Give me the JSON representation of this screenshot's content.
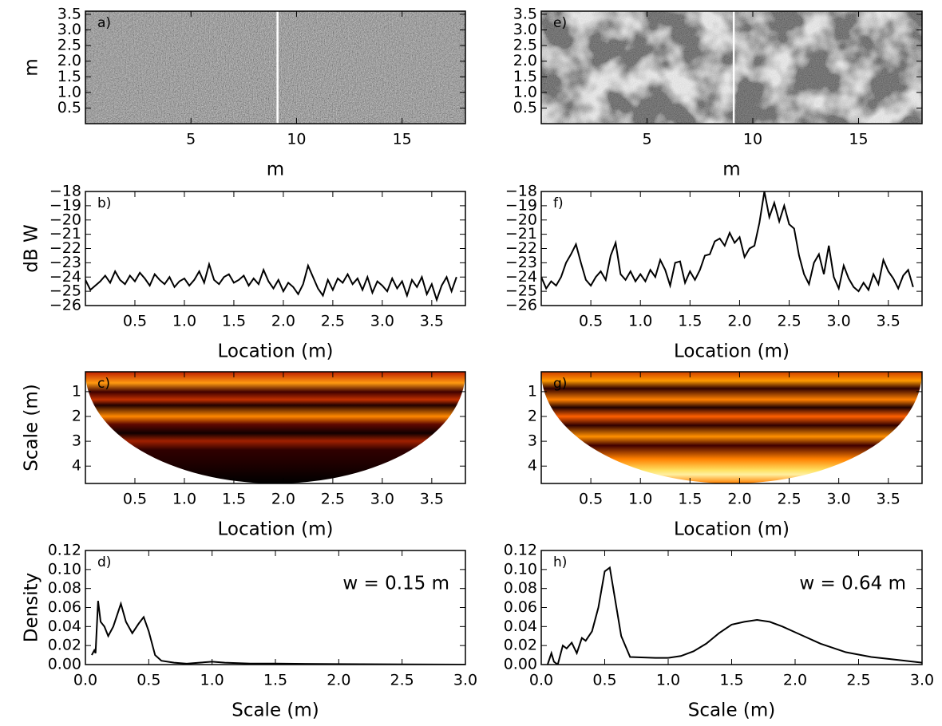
{
  "chart_data": [
    {
      "type": "image",
      "panel_label": "a)",
      "xlabel": "m",
      "ylabel": "m",
      "xlim": [
        0,
        18
      ],
      "ylim": [
        0,
        3.6
      ],
      "xticks": [
        5,
        10,
        15
      ],
      "yticks": [
        0.5,
        {
          "value": 1,
          "label": "1.0"
        },
        1.5,
        {
          "value": 2,
          "label": "2.0"
        },
        2.5,
        {
          "value": 3,
          "label": "3.0"
        },
        3.5
      ],
      "marker_x": 9.1
    },
    {
      "type": "line",
      "panel_label": "b)",
      "xlabel": "Location (m)",
      "ylabel": "dB W",
      "color": "#000000",
      "xlim": [
        0,
        3.84
      ],
      "ylim": [
        -26,
        -18
      ],
      "xticks": [
        0.5,
        {
          "value": 1,
          "label": "1.0"
        },
        1.5,
        {
          "value": 2,
          "label": "2.0"
        },
        2.5,
        {
          "value": 3,
          "label": "3.0"
        },
        3.5
      ],
      "yticks": [
        {
          "value": -18,
          "label": "−18"
        },
        {
          "value": -19,
          "label": "−19"
        },
        {
          "value": -20,
          "label": "−20"
        },
        {
          "value": -21,
          "label": "−21"
        },
        {
          "value": -22,
          "label": "−22"
        },
        {
          "value": -23,
          "label": "−23"
        },
        {
          "value": -24,
          "label": "−24"
        },
        {
          "value": -25,
          "label": "−25"
        },
        {
          "value": -26,
          "label": "−26"
        }
      ],
      "x": [
        0,
        0.05,
        0.1,
        0.15,
        0.2,
        0.25,
        0.3,
        0.35,
        0.4,
        0.45,
        0.5,
        0.55,
        0.6,
        0.65,
        0.7,
        0.75,
        0.8,
        0.85,
        0.9,
        0.95,
        1,
        1.05,
        1.1,
        1.15,
        1.2,
        1.25,
        1.3,
        1.35,
        1.4,
        1.45,
        1.5,
        1.55,
        1.6,
        1.65,
        1.7,
        1.75,
        1.8,
        1.85,
        1.9,
        1.95,
        2,
        2.05,
        2.1,
        2.15,
        2.2,
        2.25,
        2.3,
        2.35,
        2.4,
        2.45,
        2.5,
        2.55,
        2.6,
        2.65,
        2.7,
        2.75,
        2.8,
        2.85,
        2.9,
        2.95,
        3,
        3.05,
        3.1,
        3.15,
        3.2,
        3.25,
        3.3,
        3.35,
        3.4,
        3.45,
        3.5,
        3.55,
        3.6,
        3.65,
        3.7,
        3.75
      ],
      "values": [
        -24.2,
        -24.9,
        -24.6,
        -24.3,
        -23.9,
        -24.4,
        -23.6,
        -24.2,
        -24.5,
        -23.9,
        -24.3,
        -23.7,
        -24.1,
        -24.6,
        -23.8,
        -24.2,
        -24.5,
        -24.0,
        -24.7,
        -24.3,
        -24.1,
        -24.6,
        -24.2,
        -23.6,
        -24.4,
        -23.1,
        -24.2,
        -24.5,
        -24.0,
        -23.8,
        -24.4,
        -24.2,
        -23.9,
        -24.6,
        -24.1,
        -24.5,
        -23.5,
        -24.3,
        -24.8,
        -24.2,
        -25.0,
        -24.4,
        -24.7,
        -25.2,
        -24.5,
        -23.2,
        -24.0,
        -24.8,
        -25.3,
        -24.2,
        -24.9,
        -24.1,
        -24.4,
        -23.8,
        -24.5,
        -24.1,
        -24.9,
        -24.0,
        -25.1,
        -24.3,
        -24.6,
        -25.0,
        -24.1,
        -24.8,
        -24.3,
        -25.3,
        -24.2,
        -24.7,
        -24.0,
        -25.2,
        -24.5,
        -25.6,
        -24.6,
        -24.0,
        -25.0,
        -24.0
      ]
    },
    {
      "type": "heatmap",
      "panel_label": "c)",
      "xlabel": "Location (m)",
      "ylabel": "Scale (m)",
      "xlim": [
        0,
        3.84
      ],
      "ylim": [
        0.2,
        4.7
      ],
      "y_inverted": true,
      "xticks": [
        0.5,
        {
          "value": 1,
          "label": "1.0"
        },
        1.5,
        {
          "value": 2,
          "label": "2.0"
        },
        2.5,
        {
          "value": 3,
          "label": "3.0"
        },
        3.5
      ],
      "yticks": [
        1,
        2,
        3,
        4
      ]
    },
    {
      "type": "line",
      "panel_label": "d)",
      "xlabel": "Scale (m)",
      "ylabel": "Density",
      "annotation": "w = 0.15 m",
      "color": "#000000",
      "xlim": [
        0,
        3
      ],
      "ylim": [
        0,
        0.12
      ],
      "xticks": [
        {
          "value": 0,
          "label": "0.0"
        },
        0.5,
        {
          "value": 1,
          "label": "1.0"
        },
        1.5,
        {
          "value": 2,
          "label": "2.0"
        },
        2.5,
        {
          "value": 3,
          "label": "3.0"
        }
      ],
      "yticks": [
        {
          "value": 0,
          "label": "0.00"
        },
        {
          "value": 0.02,
          "label": "0.02"
        },
        {
          "value": 0.04,
          "label": "0.04"
        },
        {
          "value": 0.06,
          "label": "0.06"
        },
        {
          "value": 0.08,
          "label": "0.08"
        },
        {
          "value": 0.1,
          "label": "0.10"
        },
        {
          "value": 0.12,
          "label": "0.12"
        }
      ],
      "x": [
        0.05,
        0.07,
        0.08,
        0.1,
        0.12,
        0.15,
        0.18,
        0.22,
        0.28,
        0.32,
        0.37,
        0.42,
        0.46,
        0.5,
        0.55,
        0.6,
        0.7,
        0.8,
        0.9,
        1.0,
        1.1,
        1.3,
        1.5,
        2.0,
        3.0
      ],
      "values": [
        0.01,
        0.015,
        0.012,
        0.067,
        0.045,
        0.04,
        0.03,
        0.04,
        0.064,
        0.045,
        0.033,
        0.043,
        0.05,
        0.035,
        0.01,
        0.004,
        0.002,
        0.001,
        0.002,
        0.003,
        0.002,
        0.001,
        0.001,
        0.0005,
        0
      ]
    },
    {
      "type": "image",
      "panel_label": "e)",
      "xlabel": "m",
      "xlim": [
        0,
        18
      ],
      "ylim": [
        0,
        3.6
      ],
      "xticks": [
        5,
        10,
        15
      ],
      "yticks": [
        0.5,
        {
          "value": 1,
          "label": "1.0"
        },
        1.5,
        {
          "value": 2,
          "label": "2.0"
        },
        2.5,
        {
          "value": 3,
          "label": "3.0"
        },
        3.5
      ],
      "marker_x": 9.1
    },
    {
      "type": "line",
      "panel_label": "f)",
      "xlabel": "Location (m)",
      "color": "#000000",
      "xlim": [
        0,
        3.84
      ],
      "ylim": [
        -26,
        -18
      ],
      "xticks": [
        0.5,
        {
          "value": 1,
          "label": "1.0"
        },
        1.5,
        {
          "value": 2,
          "label": "2.0"
        },
        2.5,
        {
          "value": 3,
          "label": "3.0"
        },
        3.5
      ],
      "yticks": [
        {
          "value": -18,
          "label": "−18"
        },
        {
          "value": -19,
          "label": "−19"
        },
        {
          "value": -20,
          "label": "−20"
        },
        {
          "value": -21,
          "label": "−21"
        },
        {
          "value": -22,
          "label": "−22"
        },
        {
          "value": -23,
          "label": "−23"
        },
        {
          "value": -24,
          "label": "−24"
        },
        {
          "value": -25,
          "label": "−25"
        },
        {
          "value": -26,
          "label": "−26"
        }
      ],
      "x": [
        0,
        0.05,
        0.1,
        0.15,
        0.2,
        0.25,
        0.3,
        0.35,
        0.4,
        0.45,
        0.5,
        0.55,
        0.6,
        0.65,
        0.7,
        0.75,
        0.8,
        0.85,
        0.9,
        0.95,
        1,
        1.05,
        1.1,
        1.15,
        1.2,
        1.25,
        1.3,
        1.35,
        1.4,
        1.45,
        1.5,
        1.55,
        1.6,
        1.65,
        1.7,
        1.75,
        1.8,
        1.85,
        1.9,
        1.95,
        2,
        2.05,
        2.1,
        2.15,
        2.2,
        2.25,
        2.3,
        2.35,
        2.4,
        2.45,
        2.5,
        2.55,
        2.6,
        2.65,
        2.7,
        2.75,
        2.8,
        2.85,
        2.9,
        2.95,
        3,
        3.05,
        3.1,
        3.15,
        3.2,
        3.25,
        3.3,
        3.35,
        3.4,
        3.45,
        3.5,
        3.55,
        3.6,
        3.65,
        3.7,
        3.75
      ],
      "values": [
        -24.0,
        -24.8,
        -24.3,
        -24.6,
        -24.0,
        -23.0,
        -22.4,
        -21.7,
        -23.0,
        -24.2,
        -24.6,
        -24.0,
        -23.6,
        -24.2,
        -22.5,
        -21.6,
        -23.8,
        -24.2,
        -23.6,
        -24.3,
        -23.8,
        -24.3,
        -23.5,
        -24.0,
        -22.8,
        -23.5,
        -24.6,
        -23.0,
        -22.9,
        -24.4,
        -23.6,
        -24.2,
        -23.5,
        -22.5,
        -22.4,
        -21.5,
        -21.3,
        -21.8,
        -20.9,
        -21.6,
        -21.2,
        -22.6,
        -22.0,
        -21.8,
        -20.2,
        -18.0,
        -19.8,
        -18.8,
        -20.1,
        -19.0,
        -20.3,
        -20.6,
        -22.5,
        -23.8,
        -24.5,
        -23.0,
        -22.4,
        -23.8,
        -21.8,
        -24.0,
        -24.8,
        -23.2,
        -24.1,
        -24.7,
        -25.0,
        -24.4,
        -24.9,
        -23.8,
        -24.5,
        -22.8,
        -23.6,
        -24.1,
        -24.8,
        -23.9,
        -23.5,
        -24.7
      ]
    },
    {
      "type": "heatmap",
      "panel_label": "g)",
      "xlabel": "Location (m)",
      "xlim": [
        0,
        3.84
      ],
      "ylim": [
        0.2,
        4.7
      ],
      "y_inverted": true,
      "xticks": [
        0.5,
        {
          "value": 1,
          "label": "1.0"
        },
        1.5,
        {
          "value": 2,
          "label": "2.0"
        },
        2.5,
        {
          "value": 3,
          "label": "3.0"
        },
        3.5
      ],
      "yticks": [
        1,
        2,
        3,
        4
      ]
    },
    {
      "type": "line",
      "panel_label": "h)",
      "xlabel": "Scale (m)",
      "annotation": "w = 0.64 m",
      "color": "#000000",
      "xlim": [
        0,
        3
      ],
      "ylim": [
        0,
        0.12
      ],
      "xticks": [
        {
          "value": 0,
          "label": "0.0"
        },
        0.5,
        {
          "value": 1,
          "label": "1.0"
        },
        1.5,
        {
          "value": 2,
          "label": "2.0"
        },
        2.5,
        {
          "value": 3,
          "label": "3.0"
        }
      ],
      "yticks": [
        {
          "value": 0,
          "label": "0.00"
        },
        {
          "value": 0.02,
          "label": "0.02"
        },
        {
          "value": 0.04,
          "label": "0.04"
        },
        {
          "value": 0.06,
          "label": "0.06"
        },
        {
          "value": 0.08,
          "label": "0.08"
        },
        {
          "value": 0.1,
          "label": "0.10"
        },
        {
          "value": 0.12,
          "label": "0.12"
        }
      ],
      "x": [
        0.05,
        0.08,
        0.1,
        0.13,
        0.17,
        0.2,
        0.24,
        0.28,
        0.32,
        0.35,
        0.4,
        0.45,
        0.5,
        0.54,
        0.58,
        0.63,
        0.7,
        0.9,
        1.0,
        1.1,
        1.2,
        1.3,
        1.4,
        1.5,
        1.6,
        1.7,
        1.8,
        1.9,
        2.0,
        2.2,
        2.4,
        2.6,
        2.8,
        3.0
      ],
      "values": [
        0,
        0.012,
        0.003,
        0,
        0.02,
        0.017,
        0.023,
        0.012,
        0.028,
        0.025,
        0.035,
        0.06,
        0.098,
        0.102,
        0.07,
        0.03,
        0.008,
        0.007,
        0.007,
        0.009,
        0.014,
        0.022,
        0.033,
        0.042,
        0.045,
        0.047,
        0.045,
        0.04,
        0.034,
        0.022,
        0.013,
        0.008,
        0.005,
        0.002
      ]
    }
  ]
}
